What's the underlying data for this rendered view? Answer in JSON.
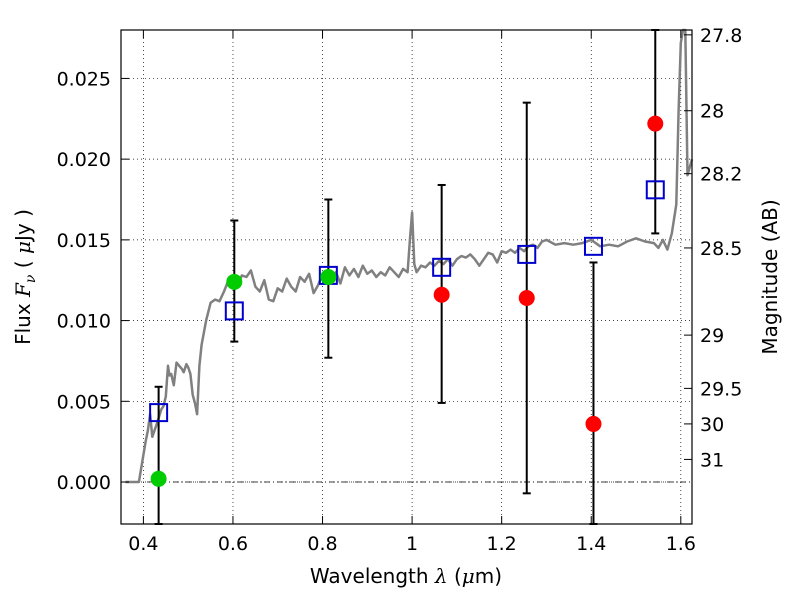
{
  "chart_data": {
    "type": "scatter",
    "xlabel": "Wavelength  λ (μm)",
    "ylabel": "Flux  Fν  ( μJy )",
    "y2label": "Magnitude (AB)",
    "xlim": [
      0.35,
      1.625
    ],
    "ylim": [
      -0.0026,
      0.028
    ],
    "x_ticks": [
      0.4,
      0.6,
      0.8,
      1.0,
      1.2,
      1.4,
      1.6
    ],
    "x_tick_labels": [
      "0.4",
      "0.6",
      "0.8",
      "1",
      "1.2",
      "1.4",
      "1.6"
    ],
    "y_ticks": [
      0.0,
      0.005,
      0.01,
      0.015,
      0.02,
      0.025
    ],
    "y_tick_labels": [
      "0.000",
      "0.005",
      "0.010",
      "0.015",
      "0.020",
      "0.025"
    ],
    "y2_ticks": [
      {
        "label": "27.8",
        "flux": 0.0277
      },
      {
        "label": "28",
        "flux": 0.023
      },
      {
        "label": "28.2",
        "flux": 0.0191
      },
      {
        "label": "28.5",
        "flux": 0.0145
      },
      {
        "label": "29",
        "flux": 0.0091
      },
      {
        "label": "29.5",
        "flux": 0.0058
      },
      {
        "label": "30",
        "flux": 0.0036
      },
      {
        "label": "31",
        "flux": 0.0014
      }
    ],
    "grid": true,
    "series": [
      {
        "kind": "line",
        "color": "#808080",
        "points": [
          [
            0.36,
            0.0
          ],
          [
            0.39,
            0.0
          ],
          [
            0.405,
            0.0025
          ],
          [
            0.41,
            0.0032
          ],
          [
            0.415,
            0.0042
          ],
          [
            0.42,
            0.0028
          ],
          [
            0.43,
            0.0036
          ],
          [
            0.44,
            0.0045
          ],
          [
            0.445,
            0.0047
          ],
          [
            0.45,
            0.0053
          ],
          [
            0.455,
            0.0072
          ],
          [
            0.458,
            0.0066
          ],
          [
            0.462,
            0.0067
          ],
          [
            0.468,
            0.006
          ],
          [
            0.474,
            0.0074
          ],
          [
            0.48,
            0.0072
          ],
          [
            0.486,
            0.007
          ],
          [
            0.49,
            0.0068
          ],
          [
            0.496,
            0.0073
          ],
          [
            0.5,
            0.0071
          ],
          [
            0.505,
            0.0067
          ],
          [
            0.51,
            0.0054
          ],
          [
            0.515,
            0.0049
          ],
          [
            0.52,
            0.0042
          ],
          [
            0.525,
            0.0072
          ],
          [
            0.53,
            0.0085
          ],
          [
            0.54,
            0.01
          ],
          [
            0.55,
            0.0111
          ],
          [
            0.56,
            0.0113
          ],
          [
            0.57,
            0.0112
          ],
          [
            0.58,
            0.0118
          ],
          [
            0.59,
            0.0125
          ],
          [
            0.6,
            0.0128
          ],
          [
            0.61,
            0.0122
          ],
          [
            0.62,
            0.0128
          ],
          [
            0.63,
            0.0127
          ],
          [
            0.64,
            0.0131
          ],
          [
            0.65,
            0.0121
          ],
          [
            0.66,
            0.0118
          ],
          [
            0.67,
            0.0125
          ],
          [
            0.68,
            0.0113
          ],
          [
            0.69,
            0.0112
          ],
          [
            0.7,
            0.012
          ],
          [
            0.71,
            0.0118
          ],
          [
            0.72,
            0.0126
          ],
          [
            0.73,
            0.0121
          ],
          [
            0.74,
            0.0118
          ],
          [
            0.75,
            0.0127
          ],
          [
            0.76,
            0.0124
          ],
          [
            0.77,
            0.0129
          ],
          [
            0.78,
            0.0117
          ],
          [
            0.79,
            0.0122
          ],
          [
            0.8,
            0.0129
          ],
          [
            0.81,
            0.0131
          ],
          [
            0.82,
            0.0125
          ],
          [
            0.83,
            0.013
          ],
          [
            0.84,
            0.0123
          ],
          [
            0.85,
            0.0133
          ],
          [
            0.86,
            0.0128
          ],
          [
            0.87,
            0.0132
          ],
          [
            0.88,
            0.0127
          ],
          [
            0.89,
            0.0134
          ],
          [
            0.9,
            0.0129
          ],
          [
            0.91,
            0.0131
          ],
          [
            0.92,
            0.0127
          ],
          [
            0.93,
            0.013
          ],
          [
            0.94,
            0.0128
          ],
          [
            0.95,
            0.0133
          ],
          [
            0.96,
            0.013
          ],
          [
            0.97,
            0.0127
          ],
          [
            0.98,
            0.0132
          ],
          [
            0.99,
            0.013
          ],
          [
            0.995,
            0.015
          ],
          [
            1.0,
            0.0167
          ],
          [
            1.005,
            0.0135
          ],
          [
            1.01,
            0.013
          ],
          [
            1.02,
            0.0134
          ],
          [
            1.03,
            0.0133
          ],
          [
            1.04,
            0.0136
          ],
          [
            1.05,
            0.0134
          ],
          [
            1.06,
            0.0137
          ],
          [
            1.07,
            0.0135
          ],
          [
            1.08,
            0.0138
          ],
          [
            1.09,
            0.0134
          ],
          [
            1.1,
            0.0138
          ],
          [
            1.11,
            0.014
          ],
          [
            1.12,
            0.0139
          ],
          [
            1.13,
            0.0141
          ],
          [
            1.14,
            0.0138
          ],
          [
            1.15,
            0.0134
          ],
          [
            1.16,
            0.0138
          ],
          [
            1.17,
            0.0142
          ],
          [
            1.18,
            0.0141
          ],
          [
            1.19,
            0.0136
          ],
          [
            1.2,
            0.0143
          ],
          [
            1.21,
            0.0142
          ],
          [
            1.22,
            0.0144
          ],
          [
            1.23,
            0.0142
          ],
          [
            1.24,
            0.0145
          ],
          [
            1.25,
            0.0143
          ],
          [
            1.26,
            0.0146
          ],
          [
            1.27,
            0.0147
          ],
          [
            1.28,
            0.0145
          ],
          [
            1.29,
            0.0149
          ],
          [
            1.3,
            0.015
          ],
          [
            1.32,
            0.0147
          ],
          [
            1.34,
            0.0148
          ],
          [
            1.36,
            0.0147
          ],
          [
            1.38,
            0.0148
          ],
          [
            1.4,
            0.015
          ],
          [
            1.42,
            0.0146
          ],
          [
            1.44,
            0.0147
          ],
          [
            1.46,
            0.0146
          ],
          [
            1.48,
            0.0149
          ],
          [
            1.5,
            0.0151
          ],
          [
            1.52,
            0.0149
          ],
          [
            1.54,
            0.0148
          ],
          [
            1.55,
            0.0145
          ],
          [
            1.56,
            0.015
          ],
          [
            1.57,
            0.0144
          ],
          [
            1.58,
            0.0154
          ],
          [
            1.59,
            0.0172
          ],
          [
            1.595,
            0.023
          ],
          [
            1.6,
            0.0272
          ],
          [
            1.605,
            0.0285
          ],
          [
            1.61,
            0.028
          ],
          [
            1.615,
            0.019
          ],
          [
            1.625,
            0.02
          ]
        ]
      },
      {
        "kind": "errorbar",
        "color": "#000000",
        "points": [
          {
            "x": 0.434,
            "y": 0.0,
            "low": -0.0026,
            "high": 0.0059
          },
          {
            "x": 0.603,
            "y": 0.0125,
            "low": 0.0087,
            "high": 0.0162
          },
          {
            "x": 0.813,
            "y": 0.0127,
            "low": 0.0077,
            "high": 0.0175
          },
          {
            "x": 1.066,
            "y": 0.0116,
            "low": 0.0049,
            "high": 0.0184
          },
          {
            "x": 1.256,
            "y": 0.0113,
            "low": -0.0007,
            "high": 0.0235
          },
          {
            "x": 1.405,
            "y": 0.0037,
            "low": -0.0026,
            "high": 0.0136
          },
          {
            "x": 1.543,
            "y": 0.0222,
            "low": 0.0154,
            "high": 0.028
          }
        ]
      },
      {
        "kind": "square",
        "color": "#0000cc",
        "points": [
          [
            0.434,
            0.0043
          ],
          [
            0.603,
            0.0106
          ],
          [
            0.813,
            0.0128
          ],
          [
            1.066,
            0.0133
          ],
          [
            1.256,
            0.0141
          ],
          [
            1.405,
            0.0146
          ],
          [
            1.543,
            0.0181
          ]
        ]
      },
      {
        "kind": "circle",
        "color": "#00cc00",
        "points": [
          [
            0.434,
            0.0002
          ],
          [
            0.603,
            0.0124
          ],
          [
            0.813,
            0.0127
          ]
        ]
      },
      {
        "kind": "circle",
        "color": "#ff0000",
        "points": [
          [
            1.066,
            0.0116
          ],
          [
            1.256,
            0.0114
          ],
          [
            1.405,
            0.0036
          ],
          [
            1.543,
            0.0222
          ]
        ]
      }
    ]
  }
}
